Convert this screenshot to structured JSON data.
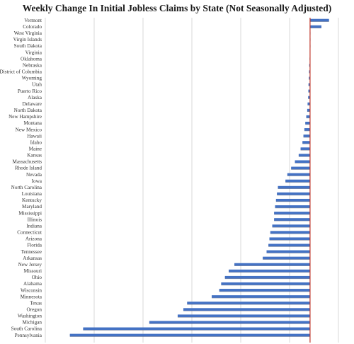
{
  "chart_data": {
    "type": "bar",
    "orientation": "horizontal",
    "title": "Weekly Change In Initial Jobless Claims by State (Not Seasonally Adjusted)",
    "xlabel": "",
    "ylabel": "",
    "xlim": [
      -14000,
      1500
    ],
    "grid": "vertical",
    "legend": "none",
    "categories": [
      "Vermont",
      "Colorado",
      "West Virginia",
      "Virgin Islands",
      "South Dakota",
      "Virginia",
      "Oklahoma",
      "Nebraska",
      "District of Columbia",
      "Wyoming",
      "Utah",
      "Puerto Rico",
      "Alaska",
      "Delaware",
      "North Dakota",
      "New Hampshire",
      "Montana",
      "New Mexico",
      "Hawaii",
      "Idaho",
      "Maine",
      "Kansas",
      "Massachusetts",
      "Rhode Island",
      "Nevada",
      "Iowa",
      "North Carolina",
      "Louisiana",
      "Kentucky",
      "Maryland",
      "Mississippi",
      "Illinois",
      "Indiana",
      "Connecticut",
      "Arizona",
      "Florida",
      "Tennessee",
      "Arkansas",
      "New Jersey",
      "Missouri",
      "Ohio",
      "Alabama",
      "Wisconsin",
      "Minnesota",
      "Texas",
      "Oregon",
      "Washington",
      "Michigan",
      "South Carolina",
      "Pennsylvania"
    ],
    "values": [
      1000,
      600,
      20,
      10,
      0,
      -10,
      -20,
      -40,
      -50,
      -60,
      -80,
      -90,
      -100,
      -130,
      -150,
      -200,
      -250,
      -300,
      -350,
      -400,
      -500,
      -600,
      -800,
      -1000,
      -1200,
      -1300,
      -1700,
      -1750,
      -1800,
      -1850,
      -1900,
      -1900,
      -2000,
      -2100,
      -2150,
      -2200,
      -2300,
      -2500,
      -4000,
      -4300,
      -4500,
      -4700,
      -4800,
      -5200,
      -6500,
      -6700,
      -7000,
      -8500,
      -12000,
      -12700
    ],
    "colors": {
      "bar": "#4472c4",
      "zero_line": "#c0392b",
      "grid": "#d9d9d9"
    }
  }
}
